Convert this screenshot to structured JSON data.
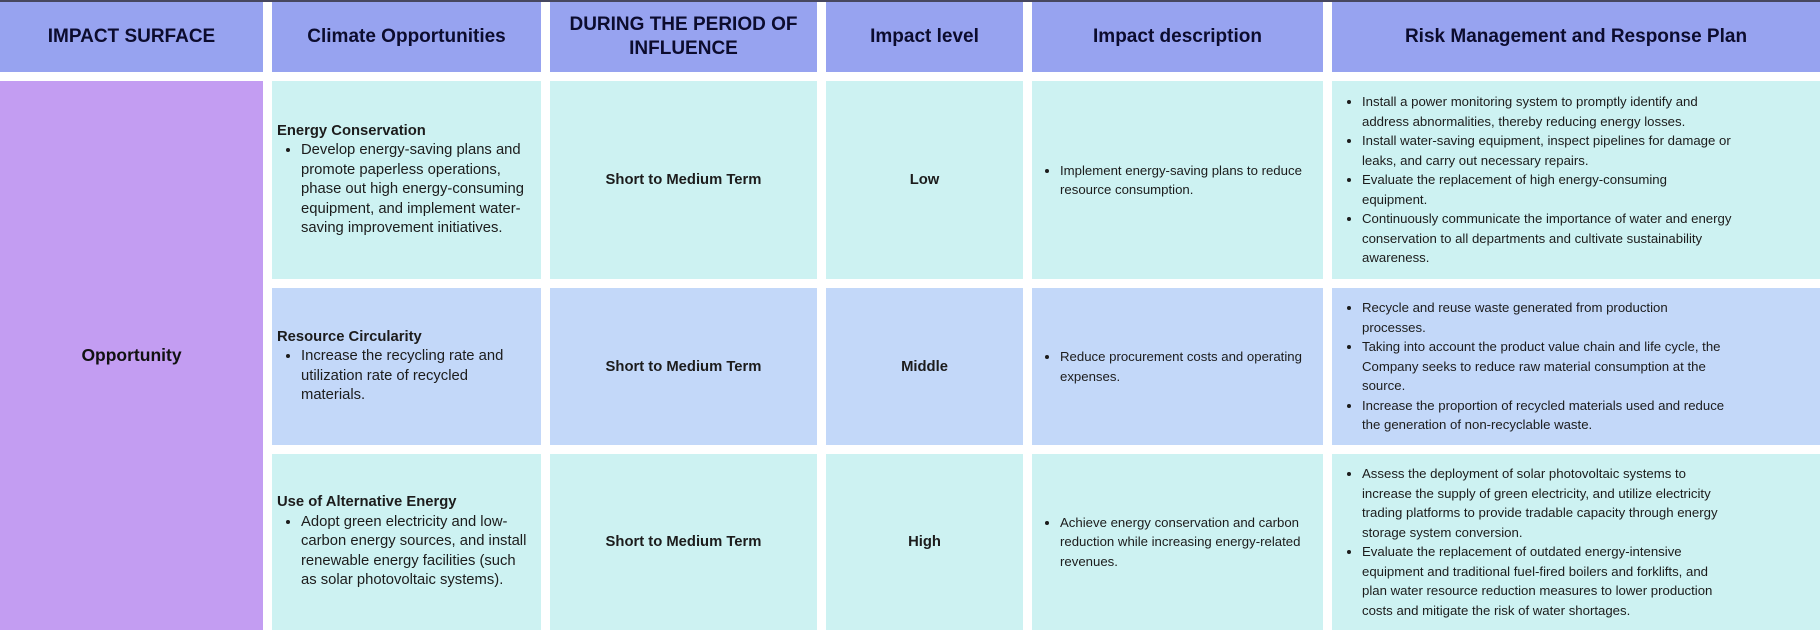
{
  "colors": {
    "header_bg": "#97a3f0",
    "opportunity_bg": "#c39df2",
    "row_cyan_bg": "#cdf2f2",
    "row_blue_bg": "#c3d8f9",
    "gap_bg": "#ffffff",
    "header_text": "#0c0c2e",
    "body_text": "#1c1c1c"
  },
  "headers": [
    "IMPACT SURFACE",
    "Climate Opportunities",
    "DURING THE PERIOD OF INFLUENCE",
    "Impact level",
    "Impact description",
    "Risk Management and Response Plan"
  ],
  "impact_surface": "Opportunity",
  "rows": [
    {
      "opportunity": {
        "title": "Energy Conservation",
        "points": [
          "Develop energy-saving plans and promote paperless operations, phase out high energy-consuming equipment, and implement water-saving improvement initiatives."
        ]
      },
      "period": "Short to Medium Term",
      "impact_level": "Low",
      "impact_description": [
        "Implement energy-saving plans to reduce resource consumption."
      ],
      "risk_plan": [
        "Install a power monitoring system to promptly identify and address abnormalities, thereby reducing energy losses.",
        "Install water-saving equipment, inspect pipelines for damage or leaks, and carry out necessary repairs.",
        "Evaluate the replacement of high energy-consuming equipment.",
        "Continuously communicate the importance of water and energy conservation to all departments and cultivate sustainability awareness."
      ]
    },
    {
      "opportunity": {
        "title": "Resource Circularity",
        "points": [
          "Increase the recycling rate and utilization rate of recycled materials."
        ]
      },
      "period": "Short to Medium Term",
      "impact_level": "Middle",
      "impact_description": [
        "Reduce procurement costs and operating expenses."
      ],
      "risk_plan": [
        "Recycle and reuse waste generated from production processes.",
        "Taking into account the product value chain and life cycle, the Company seeks to reduce raw material consumption at the source.",
        "Increase the proportion of recycled materials used and reduce the generation of non-recyclable waste."
      ]
    },
    {
      "opportunity": {
        "title": "Use of Alternative Energy",
        "points": [
          "Adopt green electricity and low-carbon energy sources, and install renewable energy facilities (such as solar photovoltaic systems)."
        ]
      },
      "period": "Short to Medium Term",
      "impact_level": "High",
      "impact_description": [
        "Achieve energy conservation and carbon reduction while increasing energy-related revenues."
      ],
      "risk_plan": [
        "Assess the deployment of solar photovoltaic systems to increase the supply of green electricity, and utilize electricity trading platforms to provide tradable capacity through energy storage system conversion.",
        "Evaluate the replacement of outdated energy-intensive equipment and traditional fuel-fired boilers and forklifts, and plan water resource reduction measures to lower production costs and mitigate the risk of water shortages."
      ]
    }
  ]
}
